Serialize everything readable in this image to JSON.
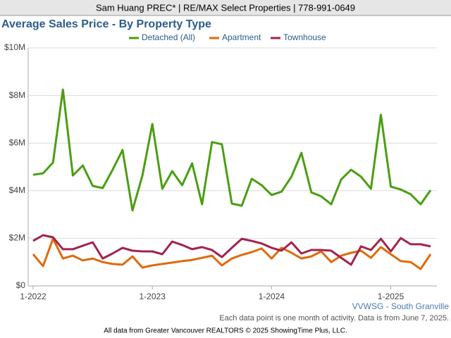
{
  "header": "Sam Huang PREC* | RE/MAX Select Properties | 778-991-0649",
  "chart_data": {
    "type": "line",
    "title": "Average Sales Price - By Property Type",
    "categories": [
      "1-2022",
      null,
      null,
      null,
      null,
      null,
      null,
      null,
      null,
      null,
      null,
      null,
      "1-2023",
      null,
      null,
      null,
      null,
      null,
      null,
      null,
      null,
      null,
      null,
      null,
      "1-2024",
      null,
      null,
      null,
      null,
      null,
      null,
      null,
      null,
      null,
      null,
      null,
      "1-2025",
      null,
      null,
      null,
      null
    ],
    "series": [
      {
        "name": "Detached (All)",
        "color": "#4a9e12",
        "values": [
          4670000,
          4730000,
          5180000,
          8250000,
          4640000,
          5060000,
          4200000,
          4110000,
          4880000,
          5710000,
          3170000,
          4640000,
          6800000,
          4080000,
          4820000,
          4230000,
          5150000,
          3430000,
          6040000,
          5950000,
          3460000,
          3370000,
          4500000,
          4230000,
          3820000,
          3960000,
          4590000,
          5590000,
          3930000,
          3760000,
          3430000,
          4470000,
          4880000,
          4590000,
          4080000,
          7190000,
          4170000,
          4050000,
          3850000,
          3430000,
          4020000
        ]
      },
      {
        "name": "Apartment",
        "color": "#e06a0a",
        "values": [
          1330000,
          830000,
          1980000,
          1150000,
          1270000,
          1070000,
          1150000,
          1000000,
          920000,
          890000,
          1240000,
          770000,
          860000,
          920000,
          980000,
          1040000,
          1090000,
          1180000,
          1270000,
          860000,
          1150000,
          1300000,
          1420000,
          1570000,
          1150000,
          1600000,
          1390000,
          1150000,
          1240000,
          1450000,
          1000000,
          1270000,
          1390000,
          1480000,
          1180000,
          1630000,
          1330000,
          1040000,
          1000000,
          710000,
          1330000
        ]
      },
      {
        "name": "Townhouse",
        "color": "#a3234f",
        "values": [
          1890000,
          2130000,
          2040000,
          1540000,
          1540000,
          1690000,
          1830000,
          1150000,
          1360000,
          1600000,
          1480000,
          1450000,
          1450000,
          1330000,
          1860000,
          1720000,
          1540000,
          1630000,
          1510000,
          1210000,
          1600000,
          1980000,
          1890000,
          1780000,
          1600000,
          1480000,
          1830000,
          1360000,
          1510000,
          1510000,
          1480000,
          1180000,
          890000,
          1660000,
          1510000,
          1980000,
          1450000,
          2010000,
          1750000,
          1750000,
          1660000
        ]
      }
    ],
    "ylim": [
      0,
      10000000
    ],
    "yticks": [
      {
        "value": 0,
        "label": "$0"
      },
      {
        "value": 2000000,
        "label": "$2M"
      },
      {
        "value": 4000000,
        "label": "$4M"
      },
      {
        "value": 6000000,
        "label": "$6M"
      },
      {
        "value": 8000000,
        "label": "$8M"
      },
      {
        "value": 10000000,
        "label": "$10M"
      }
    ],
    "grid": true,
    "legend": "top",
    "area_label": "VVWSG - South Granville",
    "note": "Each data point is one month of activity. Data is from June 7, 2025.",
    "source": "All data from Greater Vancouver REALTORS © 2025 ShowingTime Plus, LLC."
  }
}
